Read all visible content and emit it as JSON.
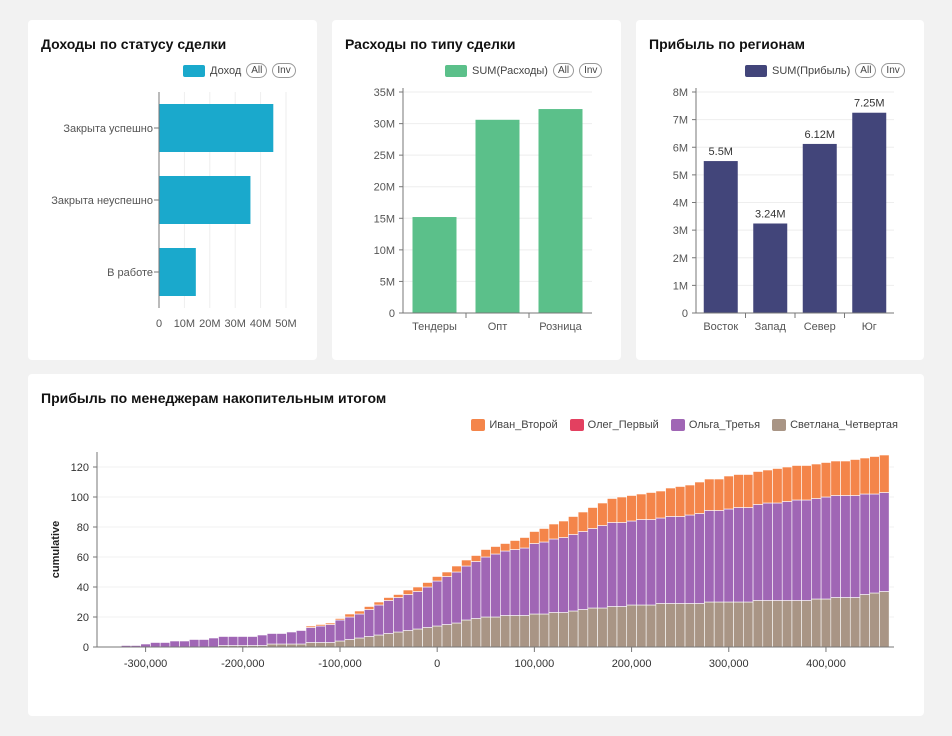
{
  "panel1": {
    "title": "Доходы по статусу сделки",
    "legend_label": "Доход",
    "all_label": "All",
    "inv_label": "Inv"
  },
  "panel2": {
    "title": "Расходы по типу сделки",
    "legend_label": "SUM(Расходы)",
    "all_label": "All",
    "inv_label": "Inv"
  },
  "panel3": {
    "title": "Прибыль по регионам",
    "legend_label": "SUM(Прибыль)",
    "all_label": "All",
    "inv_label": "Inv"
  },
  "panel4": {
    "title": "Прибыль по менеджерам накопительным итогом"
  },
  "colors": {
    "income": "#1aa9cc",
    "expenses": "#5bc08a",
    "profit": "#42457a",
    "ivan": "#f4854a",
    "oleg": "#e34060",
    "olga": "#a066b5",
    "svetlana": "#a99585"
  },
  "chart_data": [
    {
      "type": "bar",
      "orientation": "horizontal",
      "title": "Доходы по статусу сделки",
      "categories": [
        "Закрыта успешно",
        "Закрыта неуспешно",
        "В работе"
      ],
      "values": [
        45000000,
        36000000,
        14500000
      ],
      "series_name": "Доход",
      "xlim": [
        0,
        50000000
      ],
      "xticks": [
        "0",
        "10M",
        "20M",
        "30M",
        "40M",
        "50M"
      ]
    },
    {
      "type": "bar",
      "title": "Расходы по типу сделки",
      "categories": [
        "Тендеры",
        "Опт",
        "Розница"
      ],
      "values": [
        15200000,
        30600000,
        32300000
      ],
      "series_name": "SUM(Расходы)",
      "ylim": [
        0,
        35000000
      ],
      "yticks": [
        "0",
        "5M",
        "10M",
        "15M",
        "20M",
        "25M",
        "30M",
        "35M"
      ]
    },
    {
      "type": "bar",
      "title": "Прибыль по регионам",
      "categories": [
        "Восток",
        "Запад",
        "Север",
        "Юг"
      ],
      "values": [
        5500000,
        3240000,
        6120000,
        7250000
      ],
      "value_labels": [
        "5.5M",
        "3.24M",
        "6.12M",
        "7.25M"
      ],
      "series_name": "SUM(Прибыль)",
      "ylim": [
        0,
        8000000
      ],
      "yticks": [
        "0",
        "1M",
        "2M",
        "3M",
        "4M",
        "5M",
        "6M",
        "7M",
        "8M"
      ]
    },
    {
      "type": "area",
      "stacked": true,
      "title": "Прибыль по менеджерам накопительным итогом",
      "ylabel": "cumulative",
      "xlim": [
        -350000,
        470000
      ],
      "ylim": [
        0,
        130
      ],
      "xticks": [
        "-300,000",
        "-200,000",
        "-100,000",
        "0",
        "100,000",
        "200,000",
        "300,000",
        "400,000"
      ],
      "xtick_values": [
        -300000,
        -200000,
        -100000,
        0,
        100000,
        200000,
        300000,
        400000
      ],
      "yticks": [
        "0",
        "20",
        "40",
        "60",
        "80",
        "100",
        "120"
      ],
      "ytick_values": [
        0,
        20,
        40,
        60,
        80,
        100,
        120
      ],
      "x": [
        -320000,
        -310000,
        -300000,
        -290000,
        -280000,
        -270000,
        -260000,
        -250000,
        -240000,
        -230000,
        -220000,
        -210000,
        -200000,
        -190000,
        -180000,
        -170000,
        -160000,
        -150000,
        -140000,
        -130000,
        -120000,
        -110000,
        -100000,
        -90000,
        -80000,
        -70000,
        -60000,
        -50000,
        -40000,
        -30000,
        -20000,
        -10000,
        0,
        10000,
        20000,
        30000,
        40000,
        50000,
        60000,
        70000,
        80000,
        90000,
        100000,
        110000,
        120000,
        130000,
        140000,
        150000,
        160000,
        170000,
        180000,
        190000,
        200000,
        210000,
        220000,
        230000,
        240000,
        250000,
        260000,
        270000,
        280000,
        290000,
        300000,
        310000,
        320000,
        330000,
        340000,
        350000,
        360000,
        370000,
        380000,
        390000,
        400000,
        410000,
        420000,
        430000,
        440000,
        450000,
        460000
      ],
      "series": [
        {
          "name": "Светлана_Четвертая",
          "values": [
            0,
            0,
            0,
            0,
            0,
            0,
            0,
            0,
            0,
            0,
            1,
            1,
            1,
            1,
            1,
            2,
            2,
            2,
            2,
            3,
            3,
            3,
            4,
            5,
            6,
            7,
            8,
            9,
            10,
            11,
            12,
            13,
            14,
            15,
            16,
            18,
            19,
            20,
            20,
            21,
            21,
            21,
            22,
            22,
            23,
            23,
            24,
            25,
            26,
            26,
            27,
            27,
            28,
            28,
            28,
            29,
            29,
            29,
            29,
            29,
            30,
            30,
            30,
            30,
            30,
            31,
            31,
            31,
            31,
            31,
            31,
            32,
            32,
            33,
            33,
            33,
            35,
            36,
            37
          ]
        },
        {
          "name": "Ольга_Третья",
          "values": [
            1,
            1,
            2,
            3,
            3,
            4,
            4,
            5,
            5,
            6,
            6,
            6,
            6,
            6,
            7,
            7,
            7,
            8,
            9,
            10,
            11,
            12,
            14,
            15,
            16,
            18,
            20,
            22,
            23,
            24,
            25,
            27,
            30,
            32,
            34,
            36,
            38,
            40,
            42,
            43,
            44,
            45,
            47,
            48,
            49,
            50,
            51,
            52,
            53,
            55,
            56,
            56,
            56,
            57,
            57,
            57,
            58,
            58,
            59,
            60,
            61,
            61,
            62,
            63,
            63,
            64,
            65,
            65,
            66,
            67,
            67,
            67,
            68,
            68,
            68,
            68,
            67,
            66,
            66
          ]
        },
        {
          "name": "Олег_Первый",
          "values": [
            0,
            0,
            0,
            0,
            0,
            0,
            0,
            0,
            0,
            0,
            0,
            0,
            0,
            0,
            0,
            0,
            0,
            0,
            0,
            0,
            0,
            0,
            0,
            0,
            0,
            0,
            0,
            0,
            0,
            0,
            0,
            0,
            0,
            0,
            0,
            0,
            0,
            0,
            0,
            0,
            0,
            0,
            0,
            0,
            0,
            0,
            0,
            0,
            0,
            0,
            0,
            0,
            0,
            0,
            0,
            0,
            0,
            0,
            0,
            0,
            0,
            0,
            0,
            0,
            0,
            0,
            0,
            0,
            0,
            0,
            0,
            0,
            0,
            0,
            0,
            0,
            0,
            0,
            0
          ]
        },
        {
          "name": "Иван_Второй",
          "values": [
            0,
            0,
            0,
            0,
            0,
            0,
            0,
            0,
            0,
            0,
            0,
            0,
            0,
            0,
            0,
            0,
            0,
            0,
            0,
            1,
            1,
            1,
            1,
            2,
            2,
            2,
            2,
            2,
            2,
            3,
            3,
            3,
            3,
            3,
            4,
            4,
            4,
            5,
            5,
            5,
            6,
            7,
            8,
            9,
            10,
            11,
            12,
            13,
            14,
            15,
            16,
            17,
            17,
            17,
            18,
            18,
            19,
            20,
            20,
            21,
            21,
            21,
            22,
            22,
            22,
            22,
            22,
            23,
            23,
            23,
            23,
            23,
            23,
            23,
            23,
            24,
            24,
            25,
            25
          ]
        }
      ],
      "legend": [
        "Иван_Второй",
        "Олег_Первый",
        "Ольга_Третья",
        "Светлана_Четвертая"
      ]
    }
  ]
}
